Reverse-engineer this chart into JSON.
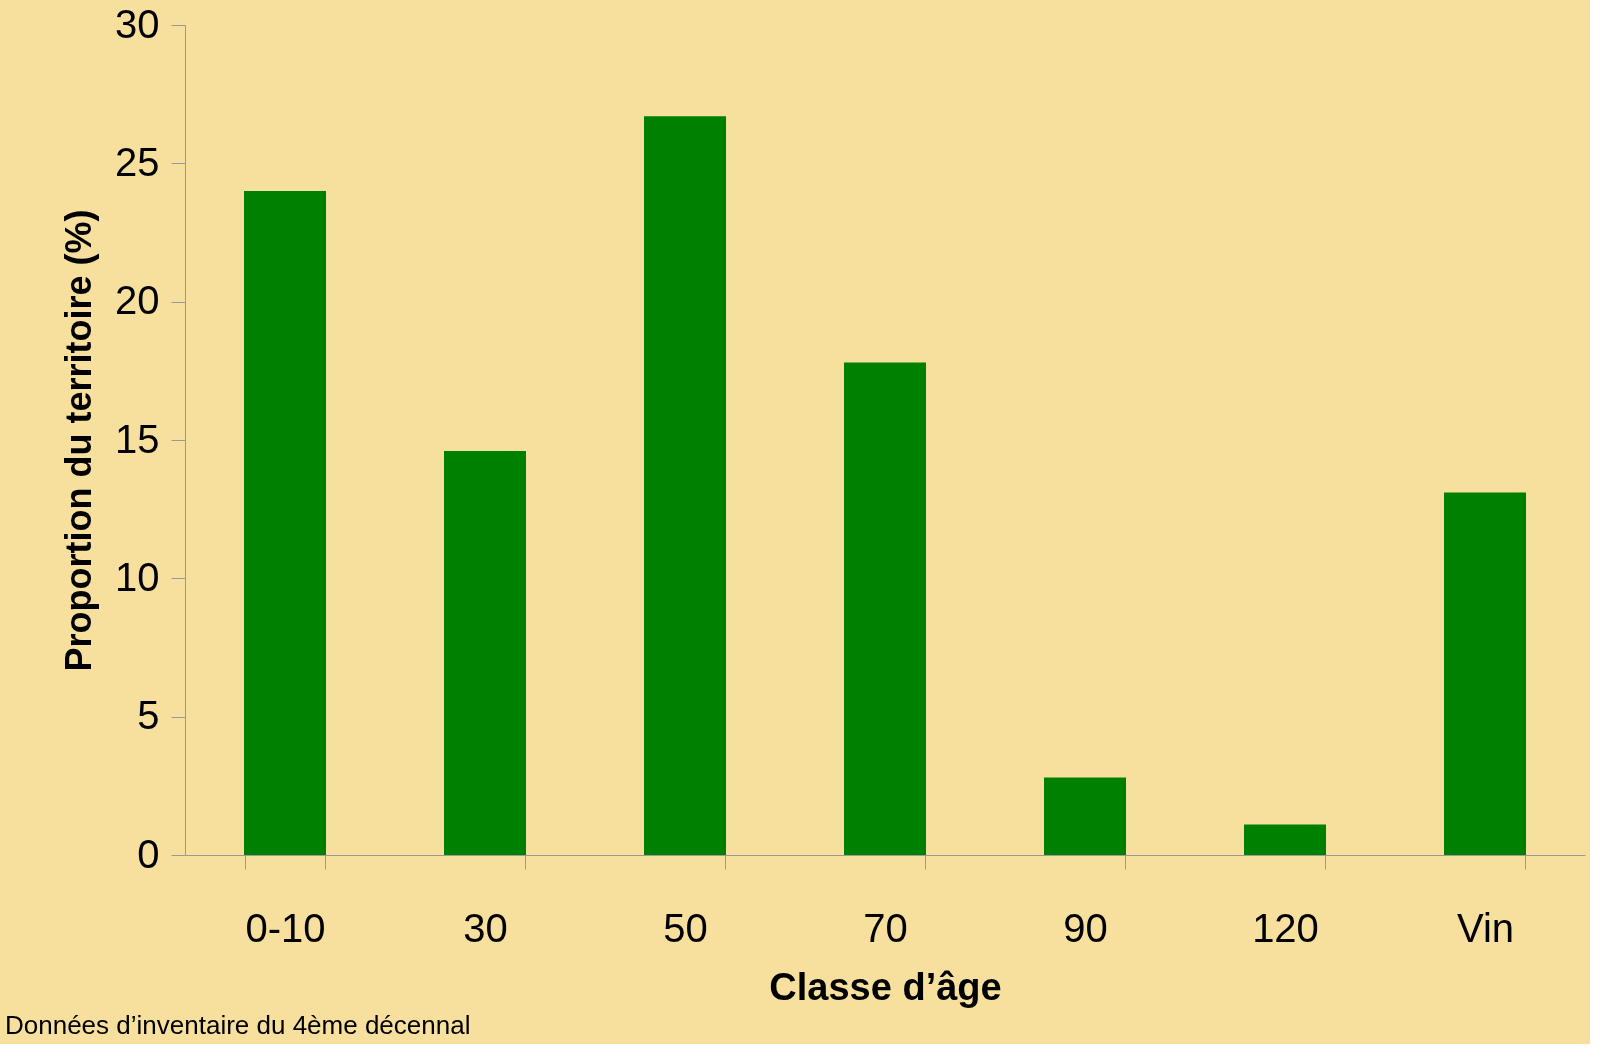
{
  "chart_data": {
    "type": "bar",
    "xlabel": "Classe d’âge",
    "ylabel": "Proportion du territoire (%)",
    "categories": [
      "0-10",
      "30",
      "50",
      "70",
      "90",
      "120",
      "Vin"
    ],
    "values": [
      24.0,
      14.6,
      26.7,
      17.8,
      2.8,
      1.1,
      13.1
    ],
    "color": "#008000",
    "ylim": [
      0,
      30
    ],
    "yticks": [
      0,
      5,
      10,
      15,
      20,
      25,
      30
    ],
    "grid": false,
    "annotations": [
      "Données d’inventaire du 4ème décennal"
    ]
  }
}
